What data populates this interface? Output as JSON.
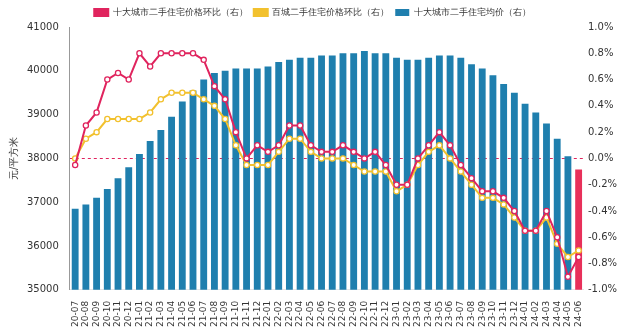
{
  "chart_data": {
    "type": "bar",
    "y_label": "元/平方米",
    "categories": [
      "20-07",
      "20-08",
      "20-09",
      "20-10",
      "20-11",
      "20-12",
      "21-01",
      "21-02",
      "21-03",
      "21-04",
      "21-05",
      "21-06",
      "21-07",
      "21-08",
      "21-09",
      "21-10",
      "21-11",
      "21-12",
      "22-01",
      "22-02",
      "22-03",
      "22-04",
      "22-05",
      "22-06",
      "22-07",
      "22-08",
      "22-09",
      "22-10",
      "22-11",
      "22-12",
      "23-01",
      "23-02",
      "23-03",
      "23-04",
      "23-05",
      "23-06",
      "23-07",
      "23-08",
      "23-09",
      "23-10",
      "23-11",
      "23-12",
      "24-01",
      "24-02",
      "24-03",
      "24-04",
      "24-05",
      "24-06"
    ],
    "ylim": [
      35000,
      41000
    ],
    "yticks": [
      35000,
      36000,
      37000,
      38000,
      39000,
      40000,
      41000
    ],
    "y2lim": [
      -1.0,
      1.0
    ],
    "y2ticks": [
      {
        "value": -1.0,
        "label": "-1.0%"
      },
      {
        "value": -0.8,
        "label": "-0.8%"
      },
      {
        "value": -0.6,
        "label": "-0.6%"
      },
      {
        "value": -0.4,
        "label": "-0.4%"
      },
      {
        "value": -0.2,
        "label": "-0.2%"
      },
      {
        "value": 0.0,
        "label": "0.0%"
      },
      {
        "value": 0.2,
        "label": "0.2%"
      },
      {
        "value": 0.4,
        "label": "0.4%"
      },
      {
        "value": 0.6,
        "label": "0.6%"
      },
      {
        "value": 0.8,
        "label": "0.8%"
      },
      {
        "value": 1.0,
        "label": "1.0%"
      }
    ],
    "legend": "top",
    "grid": false,
    "series": [
      {
        "name": "十大城市二手住宅均价（右）",
        "type": "bar",
        "axis": "y",
        "color": "#1f7fae",
        "colors": [
          "#1f7fae",
          "#1f7fae",
          "#1f7fae",
          "#1f7fae",
          "#1f7fae",
          "#1f7fae",
          "#1f7fae",
          "#1f7fae",
          "#1f7fae",
          "#1f7fae",
          "#1f7fae",
          "#1f7fae",
          "#1f7fae",
          "#1f7fae",
          "#1f7fae",
          "#1f7fae",
          "#1f7fae",
          "#1f7fae",
          "#1f7fae",
          "#1f7fae",
          "#1f7fae",
          "#1f7fae",
          "#1f7fae",
          "#1f7fae",
          "#1f7fae",
          "#1f7fae",
          "#1f7fae",
          "#1f7fae",
          "#1f7fae",
          "#1f7fae",
          "#1f7fae",
          "#1f7fae",
          "#1f7fae",
          "#1f7fae",
          "#1f7fae",
          "#1f7fae",
          "#1f7fae",
          "#1f7fae",
          "#1f7fae",
          "#1f7fae",
          "#1f7fae",
          "#1f7fae",
          "#1f7fae",
          "#1f7fae",
          "#1f7fae",
          "#1f7fae",
          "#1f7fae",
          "#e8305a"
        ],
        "values": [
          36850,
          36950,
          37100,
          37300,
          37550,
          37800,
          38100,
          38400,
          38650,
          38950,
          39300,
          39550,
          39800,
          39950,
          40000,
          40050,
          40050,
          40050,
          40100,
          40200,
          40250,
          40300,
          40300,
          40350,
          40350,
          40400,
          40400,
          40450,
          40400,
          40400,
          40300,
          40250,
          40250,
          40300,
          40350,
          40350,
          40300,
          40150,
          40050,
          39900,
          39700,
          39500,
          39250,
          39050,
          38800,
          38450,
          38050,
          37750
        ]
      },
      {
        "name": "十大城市二手住宅价格环比（右）",
        "type": "line",
        "axis": "y2",
        "color": "#e0245e",
        "marker": "circle",
        "line_style": "solid",
        "values": [
          -0.05,
          0.25,
          0.35,
          0.6,
          0.65,
          0.6,
          0.8,
          0.7,
          0.8,
          0.8,
          0.8,
          0.8,
          0.75,
          0.55,
          0.45,
          0.2,
          0.0,
          0.1,
          0.05,
          0.1,
          0.25,
          0.25,
          0.1,
          0.05,
          0.05,
          0.1,
          0.05,
          0.0,
          0.05,
          -0.05,
          -0.2,
          -0.2,
          0.0,
          0.1,
          0.2,
          0.1,
          -0.05,
          -0.15,
          -0.25,
          -0.25,
          -0.3,
          -0.4,
          -0.55,
          -0.55,
          -0.4,
          -0.6,
          -0.9,
          -0.75
        ]
      },
      {
        "name": "百城二手住宅价格环比（右）",
        "type": "line",
        "axis": "y2",
        "color": "#f2c12e",
        "marker": "circle",
        "line_style": "solid",
        "values": [
          0.0,
          0.15,
          0.2,
          0.3,
          0.3,
          0.3,
          0.3,
          0.35,
          0.45,
          0.5,
          0.5,
          0.5,
          0.45,
          0.4,
          0.3,
          0.1,
          -0.05,
          -0.05,
          -0.05,
          0.05,
          0.15,
          0.15,
          0.05,
          0.0,
          0.0,
          0.0,
          -0.05,
          -0.1,
          -0.1,
          -0.1,
          -0.25,
          -0.2,
          -0.05,
          0.05,
          0.1,
          0.0,
          -0.1,
          -0.2,
          -0.3,
          -0.3,
          -0.35,
          -0.45,
          -0.55,
          -0.55,
          -0.45,
          -0.65,
          -0.75,
          -0.7
        ]
      }
    ]
  }
}
